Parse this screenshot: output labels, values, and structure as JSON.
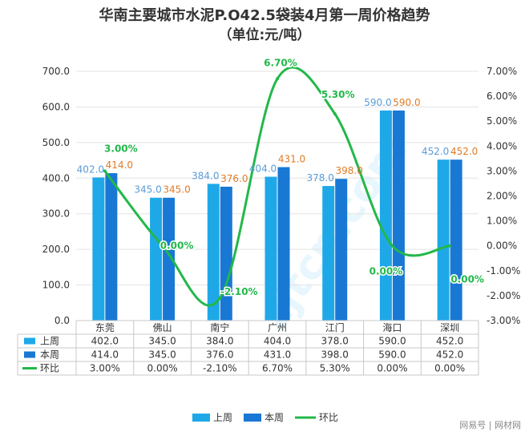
{
  "chart_data": {
    "type": "bar",
    "title": "华南主要城市水泥P.O42.5袋装4月第一周价格趋势",
    "subtitle": "（单位:元/吨）",
    "categories": [
      "东莞",
      "佛山",
      "南宁",
      "广州",
      "江门",
      "海口",
      "深圳"
    ],
    "series": [
      {
        "name": "上周",
        "kind": "bar",
        "axis": "left",
        "color": "#1fa8e8",
        "label_color": "#5b9bd5",
        "values": [
          402.0,
          345.0,
          384.0,
          404.0,
          378.0,
          590.0,
          452.0
        ],
        "table_values": [
          "402.0",
          "345.0",
          "384.0",
          "404.0",
          "378.0",
          "590.0",
          "452.0"
        ]
      },
      {
        "name": "本周",
        "kind": "bar",
        "axis": "left",
        "color": "#1878d4",
        "label_color": "#e07b24",
        "values": [
          414.0,
          345.0,
          376.0,
          431.0,
          398.0,
          590.0,
          452.0
        ],
        "table_values": [
          "414.0",
          "345.0",
          "376.0",
          "431.0",
          "398.0",
          "590.0",
          "452.0"
        ]
      },
      {
        "name": "环比",
        "kind": "line",
        "axis": "right",
        "color": "#22b84a",
        "values": [
          3.0,
          0.0,
          -2.1,
          6.7,
          5.3,
          0.0,
          0.0
        ],
        "table_values": [
          "3.00%",
          "0.00%",
          "-2.10%",
          "6.70%",
          "5.30%",
          "0.00%",
          "0.00%"
        ]
      }
    ],
    "left_axis": {
      "min": 0,
      "max": 700,
      "step": 100,
      "ticks": [
        "0.0",
        "100.0",
        "200.0",
        "300.0",
        "400.0",
        "500.0",
        "600.0",
        "700.0"
      ]
    },
    "right_axis": {
      "min": -3,
      "max": 7,
      "step": 1,
      "ticks": [
        "-3.00%",
        "-2.00%",
        "-1.00%",
        "0.00%",
        "1.00%",
        "2.00%",
        "3.00%",
        "4.00%",
        "5.00%",
        "6.00%",
        "7.00%"
      ]
    },
    "grid": true,
    "legend": {
      "placement": "bottom",
      "entries": [
        "上周",
        "本周",
        "环比"
      ]
    }
  },
  "watermark": {
    "text": "zjtcn.com"
  },
  "footer": {
    "text": "网易号 | 网材网"
  }
}
